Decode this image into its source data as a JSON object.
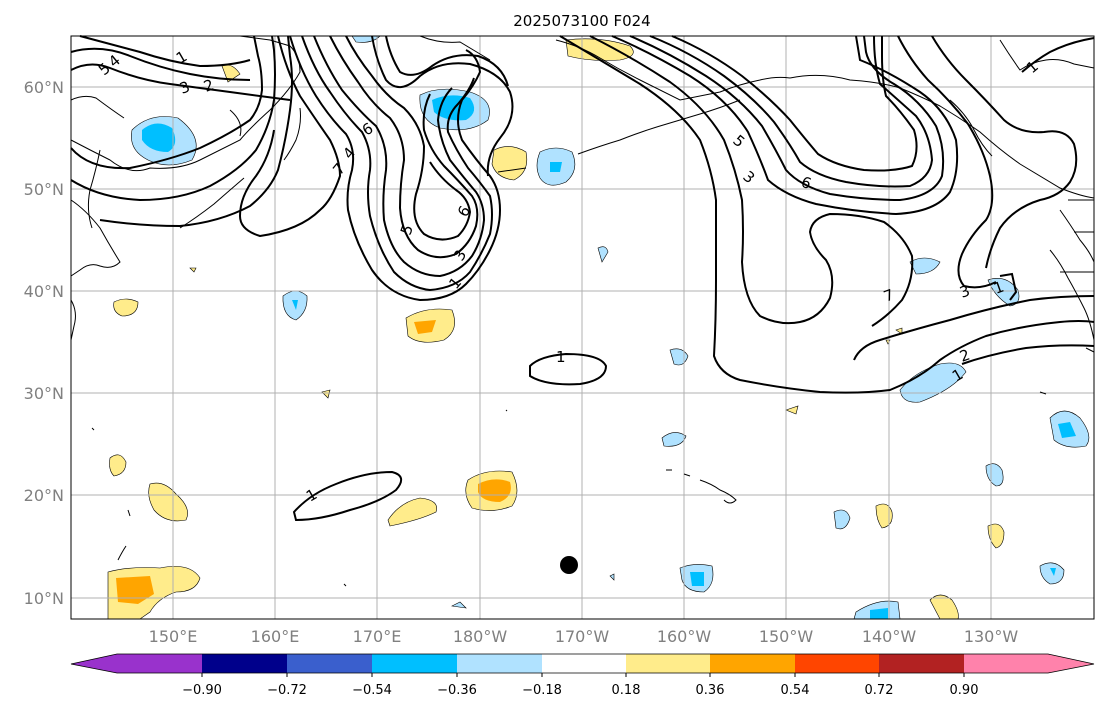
{
  "title": "2025073100 F024",
  "lat_labels": [
    "60°N",
    "50°N",
    "40°N",
    "30°N",
    "20°N",
    "10°N"
  ],
  "lon_labels": [
    "150°E",
    "160°E",
    "170°E",
    "180°W",
    "170°W",
    "160°W",
    "150°W",
    "140°W",
    "130°W"
  ],
  "colorbar": {
    "tick_labels": [
      "−0.90",
      "−0.72",
      "−0.54",
      "−0.36",
      "−0.18",
      "0.18",
      "0.36",
      "0.54",
      "0.72",
      "0.90"
    ],
    "colors": [
      "#9932cc",
      "#00008b",
      "#3a5fcd",
      "#00bfff",
      "#b0e2ff",
      "#ffffff",
      "#ffec8b",
      "#ffa500",
      "#ff4500",
      "#b22222",
      "#ff82ab"
    ]
  },
  "contour_labels": [
    "5",
    "4",
    "1",
    "3",
    "2",
    "6",
    "7",
    "4",
    "6",
    "5",
    "3",
    "1",
    "6",
    "5",
    "3",
    "7",
    "3",
    "1",
    "1",
    "1",
    "2",
    "1",
    "1"
  ],
  "marker": "black-dot"
}
